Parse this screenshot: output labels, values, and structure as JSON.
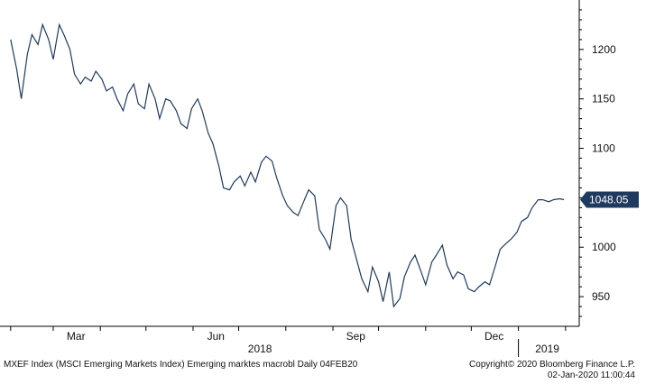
{
  "chart_data": {
    "type": "line",
    "series": [
      {
        "x": [
          "2018-02-01",
          "2018-02-05",
          "2018-02-08",
          "2018-02-12",
          "2018-02-15",
          "2018-02-19",
          "2018-02-22",
          "2018-02-26",
          "2018-03-01",
          "2018-03-05",
          "2018-03-08",
          "2018-03-12",
          "2018-03-15",
          "2018-03-19",
          "2018-03-22",
          "2018-03-26",
          "2018-03-29",
          "2018-04-02",
          "2018-04-05",
          "2018-04-09",
          "2018-04-12",
          "2018-04-16",
          "2018-04-19",
          "2018-04-23",
          "2018-04-26",
          "2018-04-30",
          "2018-05-03",
          "2018-05-07",
          "2018-05-10",
          "2018-05-14",
          "2018-05-17",
          "2018-05-21",
          "2018-05-24",
          "2018-05-28",
          "2018-05-31",
          "2018-06-04",
          "2018-06-07",
          "2018-06-11",
          "2018-06-14",
          "2018-06-18",
          "2018-06-21",
          "2018-06-25",
          "2018-06-28",
          "2018-07-02",
          "2018-07-05",
          "2018-07-09",
          "2018-07-12",
          "2018-07-16",
          "2018-07-19",
          "2018-07-23",
          "2018-07-26",
          "2018-07-30",
          "2018-08-02",
          "2018-08-06",
          "2018-08-09",
          "2018-08-13",
          "2018-08-16",
          "2018-08-20",
          "2018-08-23",
          "2018-08-27",
          "2018-08-30",
          "2018-09-03",
          "2018-09-06",
          "2018-09-10",
          "2018-09-13",
          "2018-09-17",
          "2018-09-20",
          "2018-09-24",
          "2018-09-27",
          "2018-10-01",
          "2018-10-04",
          "2018-10-08",
          "2018-10-11",
          "2018-10-15",
          "2018-10-18",
          "2018-10-22",
          "2018-10-25",
          "2018-10-29",
          "2018-11-01",
          "2018-11-05",
          "2018-11-08",
          "2018-11-12",
          "2018-11-15",
          "2018-11-19",
          "2018-11-22",
          "2018-11-26",
          "2018-11-29",
          "2018-12-03",
          "2018-12-06",
          "2018-12-10",
          "2018-12-13",
          "2018-12-17",
          "2018-12-20",
          "2018-12-24",
          "2018-12-27",
          "2018-12-31",
          "2019-01-03",
          "2019-01-07",
          "2019-01-10",
          "2019-01-14",
          "2019-01-17",
          "2019-01-21",
          "2019-01-24",
          "2019-01-28",
          "2019-01-31"
        ],
        "values": [
          1210,
          1180,
          1150,
          1195,
          1215,
          1205,
          1225,
          1210,
          1190,
          1225,
          1215,
          1200,
          1175,
          1165,
          1172,
          1168,
          1178,
          1170,
          1158,
          1162,
          1150,
          1138,
          1155,
          1165,
          1145,
          1140,
          1165,
          1150,
          1130,
          1150,
          1148,
          1138,
          1125,
          1120,
          1140,
          1150,
          1138,
          1115,
          1105,
          1082,
          1060,
          1058,
          1066,
          1072,
          1062,
          1076,
          1066,
          1086,
          1092,
          1087,
          1070,
          1052,
          1042,
          1035,
          1032,
          1047,
          1058,
          1052,
          1018,
          1008,
          998,
          1042,
          1050,
          1042,
          1008,
          985,
          968,
          955,
          980,
          965,
          945,
          975,
          940,
          948,
          970,
          985,
          992,
          975,
          962,
          985,
          992,
          1002,
          982,
          968,
          975,
          972,
          958,
          955,
          960,
          965,
          962,
          982,
          998,
          1004,
          1008,
          1015,
          1026,
          1030,
          1040,
          1048,
          1048,
          1046,
          1048,
          1049,
          1048.05
        ]
      }
    ],
    "ylim": [
      920,
      1250
    ],
    "yticks": [
      950,
      1000,
      1050,
      1100,
      1150,
      1200
    ],
    "last_value_label": "1048.05",
    "month_labels": [
      "Mar",
      "Jun",
      "Sep",
      "Dec"
    ],
    "year_labels": [
      "2018",
      "2019"
    ],
    "grid": false,
    "line_color": "#1f3a5f"
  },
  "footer": {
    "left": "MXEF Index (MSCI Emerging Markets Index) Emerging marktes macrobl  Daily 04FEB20",
    "right_line1": "Copyright© 2020 Bloomberg Finance L.P.",
    "right_line2": "02-Jan-2020 11:00:44"
  }
}
